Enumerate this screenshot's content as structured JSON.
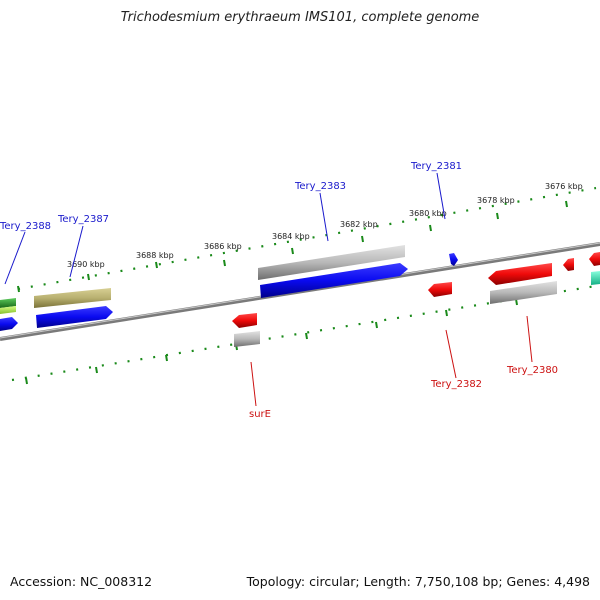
{
  "title": "Trichodesmium erythraeum IMS101, complete genome",
  "footer": {
    "accession": "Accession: NC_008312",
    "summary": "Topology: circular; Length: 7,750,108 bp; Genes: 4,498"
  },
  "scale_labels": [
    "3690 kbp",
    "3688 kbp",
    "3686 kbp",
    "3684 kbp",
    "3682 kbp",
    "3680 kbp",
    "3678 kbp",
    "3676 kbp"
  ],
  "gene_labels": {
    "tery_2388": "Tery_2388",
    "tery_2387": "Tery_2387",
    "tery_2383": "Tery_2383",
    "tery_2381": "Tery_2381",
    "sure": "surE",
    "tery_2382": "Tery_2382",
    "tery_2380": "Tery_2380"
  },
  "colors": {
    "forward_label": "#1a1acc",
    "reverse_label": "#cc1111",
    "tick": "#1a8a1a",
    "backbone": "#808080",
    "cds_blue": "#0a0af0",
    "cds_red": "#f00a0a",
    "gene_grey": "#b8b8b8",
    "gene_olive": "#b8b070",
    "gene_green": "#2aa02a",
    "gene_lime": "#a6e04a",
    "gene_teal": "#20d6a6"
  }
}
